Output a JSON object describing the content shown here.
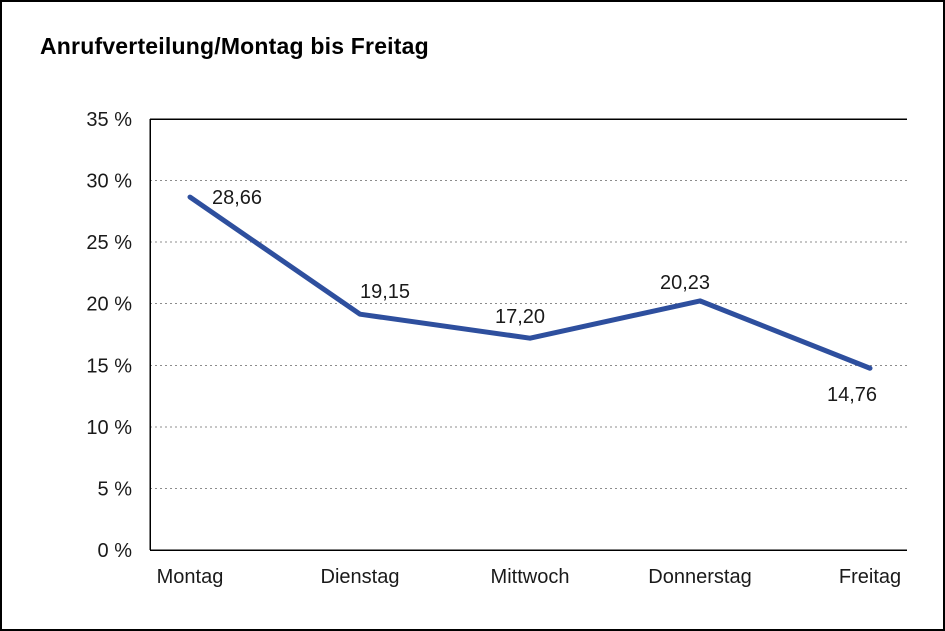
{
  "page": {
    "title": "Anrufverteilung/Montag bis Freitag"
  },
  "chart_data": {
    "type": "line",
    "title": "Anrufverteilung/Montag bis Freitag",
    "categories": [
      "Montag",
      "Dienstag",
      "Mittwoch",
      "Donnerstag",
      "Freitag"
    ],
    "values": [
      28.66,
      19.15,
      17.2,
      20.23,
      14.76
    ],
    "value_labels": [
      "28,66",
      "19,15",
      "17,20",
      "20,23",
      "14,76"
    ],
    "label_placements": [
      "right",
      "above",
      "above",
      "above",
      "below"
    ],
    "xlabel": "",
    "ylabel": "",
    "ylim": [
      0,
      35
    ],
    "y_tick_step": 5,
    "y_tick_labels": [
      "0 %",
      "5 %",
      "10 %",
      "15 %",
      "20 %",
      "25 %",
      "30 %",
      "35 %"
    ],
    "grid": "horizontal-dotted",
    "legend": "none",
    "line_color": "#2e4f9e",
    "grid_color": "#8c8c8c",
    "axis_color": "#000000",
    "text_color": "#1a1a1a"
  }
}
